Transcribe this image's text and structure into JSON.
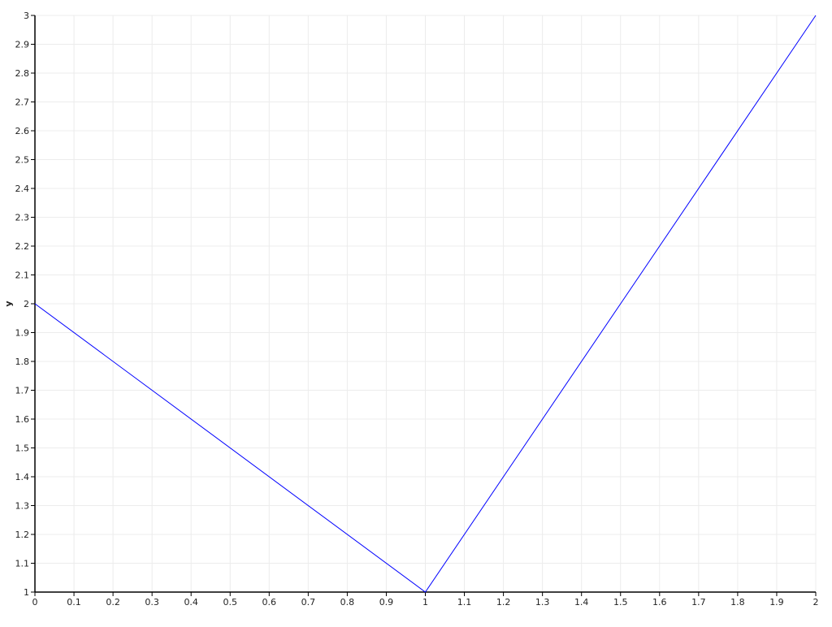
{
  "chart_data": {
    "type": "line",
    "title": "",
    "xlabel": "",
    "ylabel": "y",
    "xlim": [
      0,
      2
    ],
    "ylim": [
      1,
      3
    ],
    "xticks": [
      "0",
      "0.1",
      "0.2",
      "0.3",
      "0.4",
      "0.5",
      "0.6",
      "0.7",
      "0.8",
      "0.9",
      "1",
      "1.1",
      "1.2",
      "1.3",
      "1.4",
      "1.5",
      "1.6",
      "1.7",
      "1.8",
      "1.9",
      "2"
    ],
    "yticks": [
      "1",
      "1.1",
      "1.2",
      "1.3",
      "1.4",
      "1.5",
      "1.6",
      "1.7",
      "1.8",
      "1.9",
      "2",
      "2.1",
      "2.2",
      "2.3",
      "2.4",
      "2.5",
      "2.6",
      "2.7",
      "2.8",
      "2.9",
      "3"
    ],
    "grid": true,
    "series": [
      {
        "x": [
          0,
          1,
          2
        ],
        "y": [
          2,
          1,
          3
        ],
        "color": "#0000ff"
      }
    ]
  }
}
